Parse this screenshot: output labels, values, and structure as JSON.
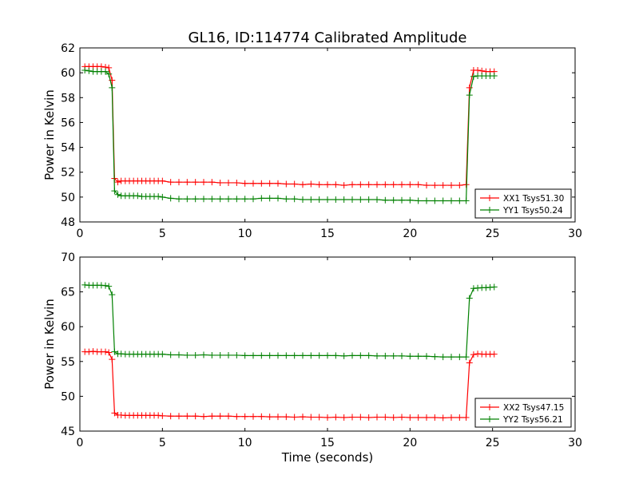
{
  "title": "GL16, ID:114774 Calibrated Amplitude",
  "xlabel": "Time (seconds)",
  "colors": {
    "red": "#ff0000",
    "green": "#008000"
  },
  "chart_data": [
    {
      "type": "line",
      "ylabel": "Power in Kelvin",
      "xlim": [
        0,
        30
      ],
      "ylim": [
        48,
        62
      ],
      "xticks": [
        0,
        5,
        10,
        15,
        20,
        25,
        30
      ],
      "yticks": [
        48,
        50,
        52,
        54,
        56,
        58,
        60,
        62
      ],
      "grid": false,
      "legend_position": "lower-right",
      "series": [
        {
          "name": "XX1 Tsys51.30",
          "color": "#ff0000",
          "points": [
            [
              0.3,
              60.5
            ],
            [
              0.55,
              60.5
            ],
            [
              0.8,
              60.5
            ],
            [
              1.05,
              60.5
            ],
            [
              1.3,
              60.5
            ],
            [
              1.55,
              60.45
            ],
            [
              1.75,
              60.4
            ],
            [
              1.95,
              59.4
            ],
            [
              2.1,
              51.5
            ],
            [
              2.3,
              51.2
            ],
            [
              2.5,
              51.3
            ],
            [
              2.75,
              51.3
            ],
            [
              3.0,
              51.3
            ],
            [
              3.25,
              51.3
            ],
            [
              3.5,
              51.3
            ],
            [
              3.75,
              51.3
            ],
            [
              4.0,
              51.3
            ],
            [
              4.25,
              51.3
            ],
            [
              4.5,
              51.3
            ],
            [
              4.75,
              51.3
            ],
            [
              5.0,
              51.3
            ],
            [
              5.5,
              51.2
            ],
            [
              6.0,
              51.2
            ],
            [
              6.5,
              51.2
            ],
            [
              7.0,
              51.2
            ],
            [
              7.5,
              51.2
            ],
            [
              8.0,
              51.2
            ],
            [
              8.5,
              51.15
            ],
            [
              9.0,
              51.15
            ],
            [
              9.5,
              51.15
            ],
            [
              10.0,
              51.1
            ],
            [
              10.5,
              51.1
            ],
            [
              11.0,
              51.1
            ],
            [
              11.5,
              51.1
            ],
            [
              12.0,
              51.1
            ],
            [
              12.5,
              51.05
            ],
            [
              13.0,
              51.05
            ],
            [
              13.5,
              51.0
            ],
            [
              14.0,
              51.05
            ],
            [
              14.5,
              51.0
            ],
            [
              15.0,
              51.0
            ],
            [
              15.5,
              51.0
            ],
            [
              16.0,
              50.95
            ],
            [
              16.5,
              51.0
            ],
            [
              17.0,
              51.0
            ],
            [
              17.5,
              51.0
            ],
            [
              18.0,
              51.0
            ],
            [
              18.5,
              51.0
            ],
            [
              19.0,
              51.0
            ],
            [
              19.5,
              51.0
            ],
            [
              20.0,
              51.0
            ],
            [
              20.5,
              51.0
            ],
            [
              21.0,
              50.95
            ],
            [
              21.5,
              50.95
            ],
            [
              22.0,
              50.95
            ],
            [
              22.5,
              50.95
            ],
            [
              23.0,
              50.95
            ],
            [
              23.4,
              51.0
            ],
            [
              23.6,
              58.8
            ],
            [
              23.85,
              60.2
            ],
            [
              24.1,
              60.2
            ],
            [
              24.35,
              60.15
            ],
            [
              24.6,
              60.1
            ],
            [
              24.85,
              60.1
            ],
            [
              25.1,
              60.1
            ]
          ]
        },
        {
          "name": "YY1 Tsys50.24",
          "color": "#008000",
          "points": [
            [
              0.3,
              60.2
            ],
            [
              0.55,
              60.15
            ],
            [
              0.8,
              60.1
            ],
            [
              1.05,
              60.1
            ],
            [
              1.3,
              60.1
            ],
            [
              1.55,
              60.1
            ],
            [
              1.75,
              59.9
            ],
            [
              1.95,
              58.8
            ],
            [
              2.1,
              50.5
            ],
            [
              2.3,
              50.2
            ],
            [
              2.5,
              50.1
            ],
            [
              2.75,
              50.1
            ],
            [
              3.0,
              50.1
            ],
            [
              3.25,
              50.1
            ],
            [
              3.5,
              50.1
            ],
            [
              3.75,
              50.05
            ],
            [
              4.0,
              50.05
            ],
            [
              4.25,
              50.05
            ],
            [
              4.5,
              50.05
            ],
            [
              4.75,
              50.05
            ],
            [
              5.0,
              50.0
            ],
            [
              5.5,
              49.9
            ],
            [
              6.0,
              49.85
            ],
            [
              6.5,
              49.85
            ],
            [
              7.0,
              49.85
            ],
            [
              7.5,
              49.85
            ],
            [
              8.0,
              49.85
            ],
            [
              8.5,
              49.85
            ],
            [
              9.0,
              49.85
            ],
            [
              9.5,
              49.85
            ],
            [
              10.0,
              49.85
            ],
            [
              10.5,
              49.85
            ],
            [
              11.0,
              49.9
            ],
            [
              11.5,
              49.9
            ],
            [
              12.0,
              49.9
            ],
            [
              12.5,
              49.85
            ],
            [
              13.0,
              49.85
            ],
            [
              13.5,
              49.8
            ],
            [
              14.0,
              49.8
            ],
            [
              14.5,
              49.8
            ],
            [
              15.0,
              49.8
            ],
            [
              15.5,
              49.8
            ],
            [
              16.0,
              49.8
            ],
            [
              16.5,
              49.8
            ],
            [
              17.0,
              49.8
            ],
            [
              17.5,
              49.8
            ],
            [
              18.0,
              49.8
            ],
            [
              18.5,
              49.75
            ],
            [
              19.0,
              49.75
            ],
            [
              19.5,
              49.75
            ],
            [
              20.0,
              49.75
            ],
            [
              20.5,
              49.7
            ],
            [
              21.0,
              49.7
            ],
            [
              21.5,
              49.7
            ],
            [
              22.0,
              49.7
            ],
            [
              22.5,
              49.7
            ],
            [
              23.0,
              49.7
            ],
            [
              23.4,
              49.7
            ],
            [
              23.6,
              58.2
            ],
            [
              23.85,
              59.7
            ],
            [
              24.1,
              59.75
            ],
            [
              24.35,
              59.75
            ],
            [
              24.6,
              59.75
            ],
            [
              24.85,
              59.75
            ],
            [
              25.1,
              59.75
            ]
          ]
        }
      ]
    },
    {
      "type": "line",
      "ylabel": "Power in Kelvin",
      "xlabel": "Time (seconds)",
      "xlim": [
        0,
        30
      ],
      "ylim": [
        45,
        70
      ],
      "xticks": [
        0,
        5,
        10,
        15,
        20,
        25,
        30
      ],
      "yticks": [
        45,
        50,
        55,
        60,
        65,
        70
      ],
      "grid": false,
      "legend_position": "lower-right",
      "series": [
        {
          "name": "XX2 Tsys47.15",
          "color": "#ff0000",
          "points": [
            [
              0.3,
              56.4
            ],
            [
              0.55,
              56.4
            ],
            [
              0.8,
              56.45
            ],
            [
              1.05,
              56.4
            ],
            [
              1.3,
              56.4
            ],
            [
              1.55,
              56.4
            ],
            [
              1.75,
              56.3
            ],
            [
              1.95,
              55.3
            ],
            [
              2.1,
              47.6
            ],
            [
              2.3,
              47.3
            ],
            [
              2.5,
              47.3
            ],
            [
              2.75,
              47.25
            ],
            [
              3.0,
              47.25
            ],
            [
              3.25,
              47.25
            ],
            [
              3.5,
              47.25
            ],
            [
              3.75,
              47.25
            ],
            [
              4.0,
              47.25
            ],
            [
              4.25,
              47.25
            ],
            [
              4.5,
              47.25
            ],
            [
              4.75,
              47.25
            ],
            [
              5.0,
              47.2
            ],
            [
              5.5,
              47.15
            ],
            [
              6.0,
              47.15
            ],
            [
              6.5,
              47.15
            ],
            [
              7.0,
              47.15
            ],
            [
              7.5,
              47.1
            ],
            [
              8.0,
              47.15
            ],
            [
              8.5,
              47.15
            ],
            [
              9.0,
              47.15
            ],
            [
              9.5,
              47.1
            ],
            [
              10.0,
              47.1
            ],
            [
              10.5,
              47.1
            ],
            [
              11.0,
              47.1
            ],
            [
              11.5,
              47.05
            ],
            [
              12.0,
              47.05
            ],
            [
              12.5,
              47.05
            ],
            [
              13.0,
              47.0
            ],
            [
              13.5,
              47.05
            ],
            [
              14.0,
              47.0
            ],
            [
              14.5,
              47.0
            ],
            [
              15.0,
              46.95
            ],
            [
              15.5,
              47.0
            ],
            [
              16.0,
              46.95
            ],
            [
              16.5,
              47.0
            ],
            [
              17.0,
              47.0
            ],
            [
              17.5,
              46.95
            ],
            [
              18.0,
              47.0
            ],
            [
              18.5,
              47.0
            ],
            [
              19.0,
              46.95
            ],
            [
              19.5,
              47.0
            ],
            [
              20.0,
              46.95
            ],
            [
              20.5,
              46.95
            ],
            [
              21.0,
              46.95
            ],
            [
              21.5,
              46.95
            ],
            [
              22.0,
              46.9
            ],
            [
              22.5,
              46.95
            ],
            [
              23.0,
              46.95
            ],
            [
              23.4,
              46.95
            ],
            [
              23.6,
              54.8
            ],
            [
              23.85,
              56.0
            ],
            [
              24.1,
              56.1
            ],
            [
              24.35,
              56.05
            ],
            [
              24.6,
              56.05
            ],
            [
              24.85,
              56.05
            ],
            [
              25.1,
              56.05
            ]
          ]
        },
        {
          "name": "YY2 Tsys56.21",
          "color": "#008000",
          "points": [
            [
              0.3,
              66.0
            ],
            [
              0.55,
              65.95
            ],
            [
              0.8,
              65.95
            ],
            [
              1.05,
              65.95
            ],
            [
              1.3,
              65.95
            ],
            [
              1.55,
              65.9
            ],
            [
              1.75,
              65.8
            ],
            [
              1.95,
              64.6
            ],
            [
              2.1,
              56.4
            ],
            [
              2.3,
              56.1
            ],
            [
              2.5,
              56.1
            ],
            [
              2.75,
              56.05
            ],
            [
              3.0,
              56.05
            ],
            [
              3.25,
              56.05
            ],
            [
              3.5,
              56.05
            ],
            [
              3.75,
              56.05
            ],
            [
              4.0,
              56.05
            ],
            [
              4.25,
              56.05
            ],
            [
              4.5,
              56.05
            ],
            [
              4.75,
              56.05
            ],
            [
              5.0,
              56.05
            ],
            [
              5.5,
              55.95
            ],
            [
              6.0,
              55.95
            ],
            [
              6.5,
              55.9
            ],
            [
              7.0,
              55.9
            ],
            [
              7.5,
              55.95
            ],
            [
              8.0,
              55.9
            ],
            [
              8.5,
              55.9
            ],
            [
              9.0,
              55.9
            ],
            [
              9.5,
              55.9
            ],
            [
              10.0,
              55.85
            ],
            [
              10.5,
              55.85
            ],
            [
              11.0,
              55.85
            ],
            [
              11.5,
              55.85
            ],
            [
              12.0,
              55.85
            ],
            [
              12.5,
              55.85
            ],
            [
              13.0,
              55.85
            ],
            [
              13.5,
              55.85
            ],
            [
              14.0,
              55.85
            ],
            [
              14.5,
              55.85
            ],
            [
              15.0,
              55.85
            ],
            [
              15.5,
              55.85
            ],
            [
              16.0,
              55.8
            ],
            [
              16.5,
              55.85
            ],
            [
              17.0,
              55.85
            ],
            [
              17.5,
              55.85
            ],
            [
              18.0,
              55.8
            ],
            [
              18.5,
              55.8
            ],
            [
              19.0,
              55.8
            ],
            [
              19.5,
              55.8
            ],
            [
              20.0,
              55.75
            ],
            [
              20.5,
              55.75
            ],
            [
              21.0,
              55.75
            ],
            [
              21.5,
              55.7
            ],
            [
              22.0,
              55.65
            ],
            [
              22.5,
              55.65
            ],
            [
              23.0,
              55.65
            ],
            [
              23.4,
              55.65
            ],
            [
              23.6,
              64.1
            ],
            [
              23.85,
              65.5
            ],
            [
              24.1,
              65.55
            ],
            [
              24.35,
              65.6
            ],
            [
              24.6,
              65.6
            ],
            [
              24.85,
              65.65
            ],
            [
              25.1,
              65.7
            ]
          ]
        }
      ]
    }
  ]
}
